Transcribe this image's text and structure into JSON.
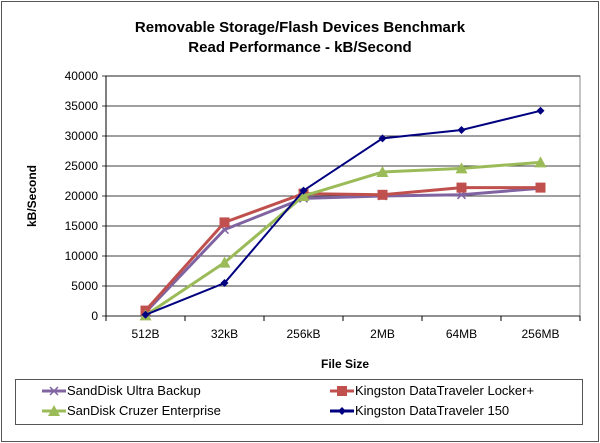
{
  "chart_data": {
    "type": "line",
    "title": [
      "Removable Storage/Flash Devices Benchmark",
      "Read Performance - kB/Second"
    ],
    "xlabel": "File Size",
    "ylabel": "kB/Second",
    "categories": [
      "512B",
      "32kB",
      "256kB",
      "2MB",
      "64MB",
      "256MB"
    ],
    "ylim": [
      0,
      40000
    ],
    "yticks": [
      "0",
      "5000",
      "10000",
      "15000",
      "20000",
      "25000",
      "30000",
      "35000",
      "40000"
    ],
    "grid": true,
    "legend_position": "bottom",
    "series": [
      {
        "name": "SandDisk Ultra Backup",
        "color": "#8064a2",
        "marker": "x",
        "values": [
          600,
          14400,
          19600,
          20000,
          20200,
          21300
        ]
      },
      {
        "name": "Kingston DataTraveler Locker+",
        "color": "#c0504d",
        "marker": "square",
        "values": [
          900,
          15600,
          20400,
          20200,
          21400,
          21400
        ]
      },
      {
        "name": "SanDisk Cruzer Enterprise",
        "color": "#9bbb59",
        "marker": "triangle",
        "values": [
          100,
          8900,
          20000,
          24000,
          24600,
          25600
        ]
      },
      {
        "name": "Kingston DataTraveler 150",
        "color": "#000080",
        "marker": "diamond",
        "values": [
          200,
          5500,
          20900,
          29600,
          31000,
          34200
        ]
      }
    ]
  }
}
